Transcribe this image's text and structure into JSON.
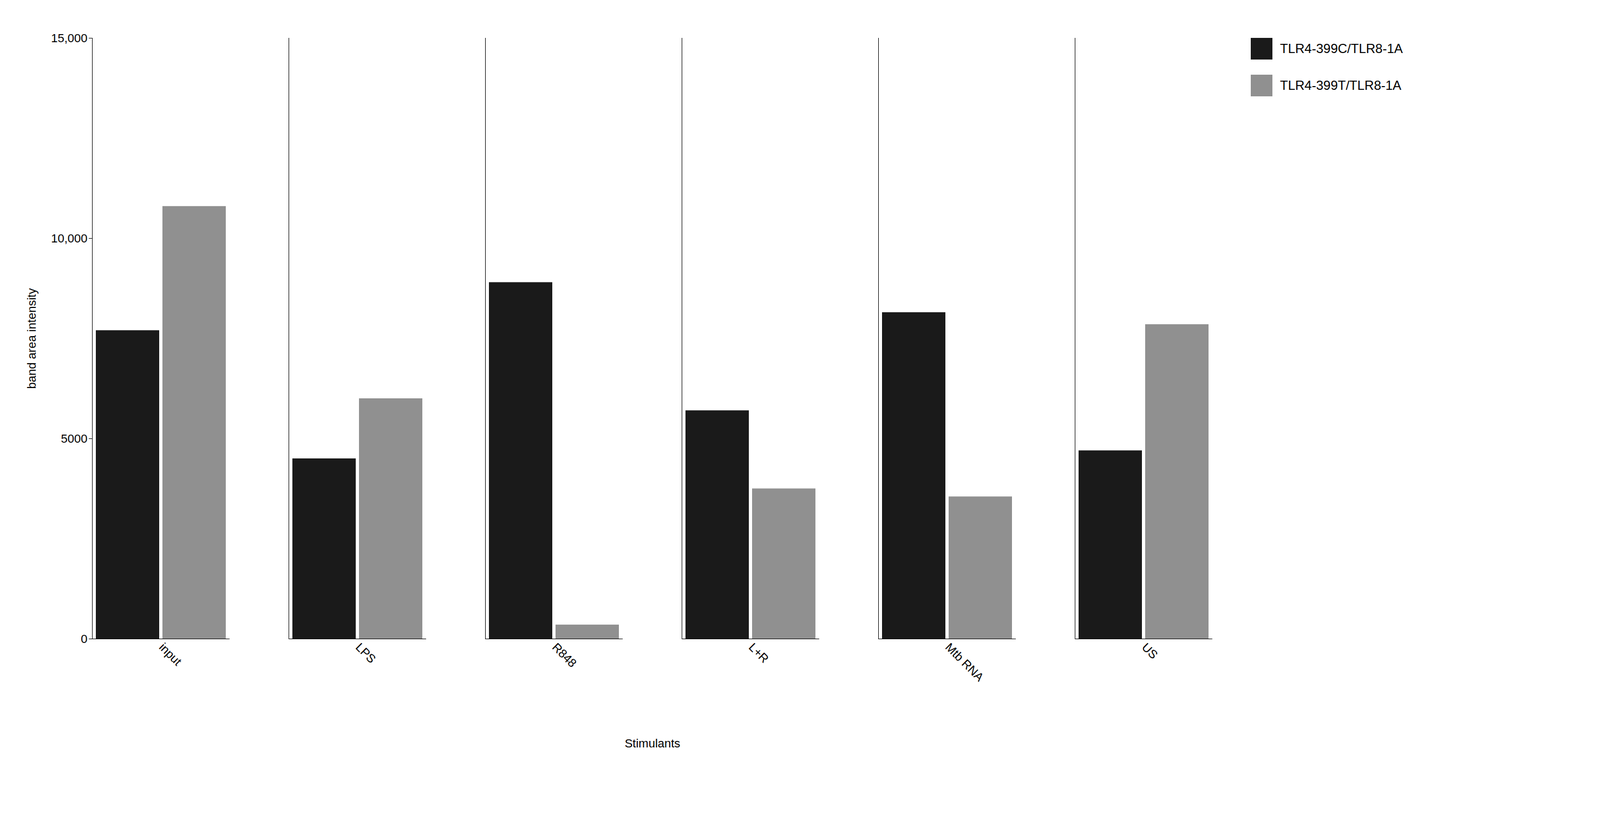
{
  "chart_data": {
    "type": "bar",
    "xlabel": "Stimulants",
    "ylabel": "band area intensity",
    "categories": [
      "input",
      "LPS",
      "R848",
      "L+R",
      "Mtb RNA",
      "US"
    ],
    "series": [
      {
        "name": "TLR4-399C/TLR8-1A",
        "color": "#1a1a1a",
        "values": [
          7700,
          4500,
          8900,
          5700,
          8150,
          4700
        ]
      },
      {
        "name": "TLR4-399T/TLR8-1A",
        "color": "#909090",
        "values": [
          10800,
          6000,
          350,
          3750,
          3550,
          7850
        ]
      }
    ],
    "ylim": [
      0,
      15000
    ],
    "yticks": [
      0,
      5000,
      {
        "value": 10000,
        "label": "10,000"
      },
      {
        "value": 15000,
        "label": "15,000"
      }
    ],
    "grid": false,
    "legend": "upper right"
  }
}
